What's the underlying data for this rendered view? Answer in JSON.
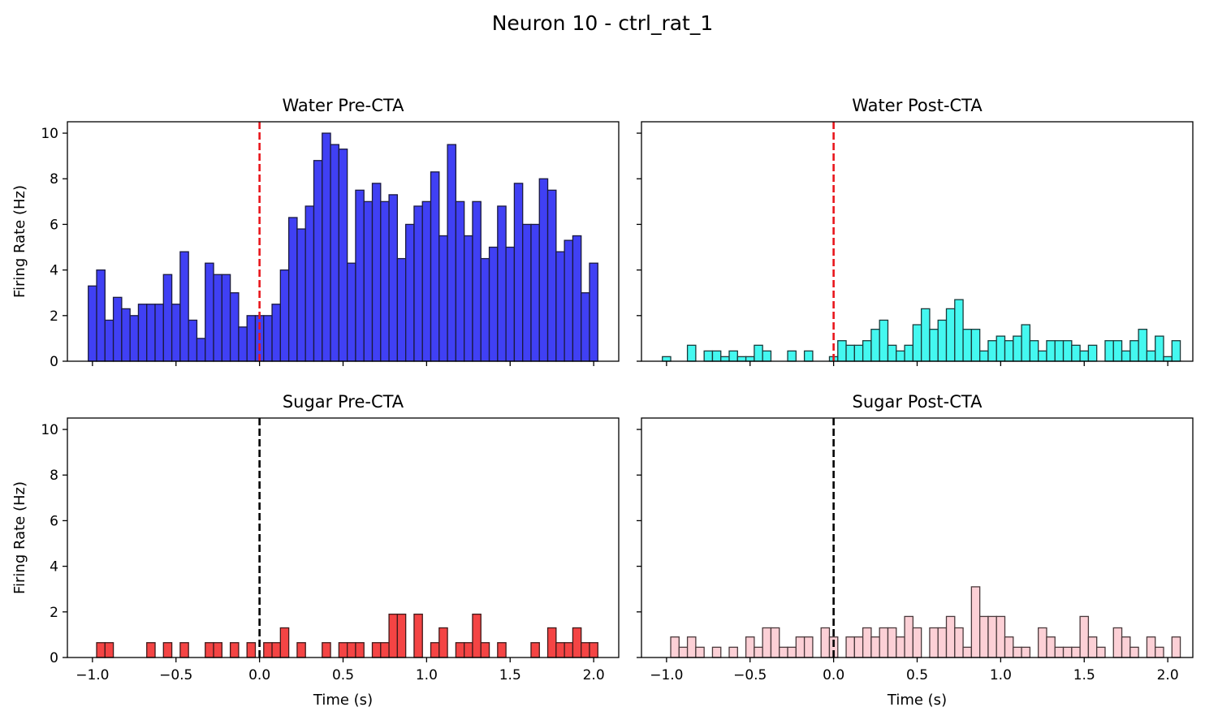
{
  "figure": {
    "title": "Neuron 10 - ctrl_rat_1"
  },
  "chart_data": [
    {
      "type": "bar",
      "title": "Water Pre-CTA",
      "xlabel": "",
      "ylabel": "Firing Rate (Hz)",
      "xlim": [
        -1.15,
        2.15
      ],
      "ylim": [
        0,
        10.5
      ],
      "xticks": [
        -1.0,
        -0.5,
        0.0,
        0.5,
        1.0,
        1.5,
        2.0
      ],
      "xtick_labels": [],
      "yticks": [
        0,
        2,
        4,
        6,
        8,
        10
      ],
      "ytick_labels": [
        "0",
        "2",
        "4",
        "6",
        "8",
        "10"
      ],
      "bin_start": -1.025,
      "bin_width": 0.05,
      "bar_color": "#4040f4",
      "edge_color": "#1a1a40",
      "stimulus_line": {
        "x": 0.0,
        "color": "#e8161c"
      },
      "values": [
        3.3,
        4.0,
        1.8,
        2.8,
        2.3,
        2.0,
        2.5,
        2.5,
        2.5,
        3.8,
        2.5,
        4.8,
        1.8,
        1.0,
        4.3,
        3.8,
        3.8,
        3.0,
        1.5,
        2.0,
        2.0,
        2.0,
        2.5,
        4.0,
        6.3,
        5.8,
        6.8,
        8.8,
        10.0,
        9.5,
        9.3,
        4.3,
        7.5,
        7.0,
        7.8,
        7.0,
        7.3,
        4.5,
        6.0,
        6.8,
        7.0,
        8.3,
        5.5,
        9.5,
        7.0,
        5.5,
        7.0,
        4.5,
        5.0,
        6.8,
        5.0,
        7.8,
        6.0,
        6.0,
        8.0,
        7.5,
        4.8,
        5.3,
        5.5,
        3.0,
        4.3
      ]
    },
    {
      "type": "bar",
      "title": "Water Post-CTA",
      "xlabel": "",
      "ylabel": "",
      "xlim": [
        -1.15,
        2.15
      ],
      "ylim": [
        0,
        10.5
      ],
      "xticks": [
        -1.0,
        -0.5,
        0.0,
        0.5,
        1.0,
        1.5,
        2.0
      ],
      "xtick_labels": [],
      "yticks": [
        0,
        2,
        4,
        6,
        8,
        10
      ],
      "ytick_labels": [],
      "bin_start": -1.025,
      "bin_width": 0.05,
      "bar_color": "#44f8f0",
      "edge_color": "#1a3a3a",
      "stimulus_line": {
        "x": 0.0,
        "color": "#e8161c"
      },
      "values": [
        0.2,
        0,
        0,
        0.7,
        0,
        0.45,
        0.45,
        0.2,
        0.45,
        0.2,
        0.2,
        0.7,
        0.45,
        0,
        0,
        0.45,
        0,
        0.45,
        0,
        0,
        0.2,
        0.9,
        0.7,
        0.7,
        0.9,
        1.4,
        1.8,
        0.7,
        0.45,
        0.7,
        1.6,
        2.3,
        1.4,
        1.8,
        2.3,
        2.7,
        1.4,
        1.4,
        0.45,
        0.9,
        1.1,
        0.9,
        1.1,
        1.6,
        0.9,
        0.45,
        0.9,
        0.9,
        0.9,
        0.7,
        0.45,
        0.7,
        0,
        0.9,
        0.9,
        0.45,
        0.9,
        1.4,
        0.45,
        1.1,
        0.2,
        0.9
      ]
    },
    {
      "type": "bar",
      "title": "Sugar Pre-CTA",
      "xlabel": "Time (s)",
      "ylabel": "Firing Rate (Hz)",
      "xlim": [
        -1.15,
        2.15
      ],
      "ylim": [
        0,
        10.5
      ],
      "xticks": [
        -1.0,
        -0.5,
        0.0,
        0.5,
        1.0,
        1.5,
        2.0
      ],
      "xtick_labels": [
        "−1.0",
        "−0.5",
        "0.0",
        "0.5",
        "1.0",
        "1.5",
        "2.0"
      ],
      "yticks": [
        0,
        2,
        4,
        6,
        8,
        10
      ],
      "ytick_labels": [
        "0",
        "2",
        "4",
        "6",
        "8",
        "10"
      ],
      "bin_start": -1.025,
      "bin_width": 0.05,
      "bar_color": "#f44444",
      "edge_color": "#401a1a",
      "stimulus_line": {
        "x": 0.0,
        "color": "#000000"
      },
      "values": [
        0,
        0.65,
        0.65,
        0,
        0,
        0,
        0,
        0.65,
        0,
        0.65,
        0,
        0.65,
        0,
        0,
        0.65,
        0.65,
        0,
        0.65,
        0,
        0.65,
        0,
        0.65,
        0.65,
        1.3,
        0,
        0.65,
        0,
        0,
        0.65,
        0,
        0.65,
        0.65,
        0.65,
        0,
        0.65,
        0.65,
        1.9,
        1.9,
        0,
        1.9,
        0,
        0.65,
        1.3,
        0,
        0.65,
        0.65,
        1.9,
        0.65,
        0,
        0.65,
        0,
        0,
        0,
        0.65,
        0,
        1.3,
        0.65,
        0.65,
        1.3,
        0.65,
        0.65
      ]
    },
    {
      "type": "bar",
      "title": "Sugar Post-CTA",
      "xlabel": "Time (s)",
      "ylabel": "",
      "xlim": [
        -1.15,
        2.15
      ],
      "ylim": [
        0,
        10.5
      ],
      "xticks": [
        -1.0,
        -0.5,
        0.0,
        0.5,
        1.0,
        1.5,
        2.0
      ],
      "xtick_labels": [
        "−1.0",
        "−0.5",
        "0.0",
        "0.5",
        "1.0",
        "1.5",
        "2.0"
      ],
      "yticks": [
        0,
        2,
        4,
        6,
        8,
        10
      ],
      "ytick_labels": [],
      "bin_start": -1.025,
      "bin_width": 0.05,
      "bar_color": "#fcd0d6",
      "edge_color": "#4a3a3c",
      "stimulus_line": {
        "x": 0.0,
        "color": "#000000"
      },
      "values": [
        0,
        0.9,
        0.45,
        0.9,
        0.45,
        0,
        0.45,
        0,
        0.45,
        0,
        0.9,
        0.45,
        1.3,
        1.3,
        0.45,
        0.45,
        0.9,
        0.9,
        0,
        1.3,
        0.9,
        0,
        0.9,
        0.9,
        1.3,
        0.9,
        1.3,
        1.3,
        0.9,
        1.8,
        1.3,
        0,
        1.3,
        1.3,
        1.8,
        1.3,
        0.45,
        3.1,
        1.8,
        1.8,
        1.8,
        0.9,
        0.45,
        0.45,
        0,
        1.3,
        0.9,
        0.45,
        0.45,
        0.45,
        1.8,
        0.9,
        0.45,
        0,
        1.3,
        0.9,
        0.45,
        0,
        0.9,
        0.45,
        0,
        0.9
      ]
    }
  ]
}
